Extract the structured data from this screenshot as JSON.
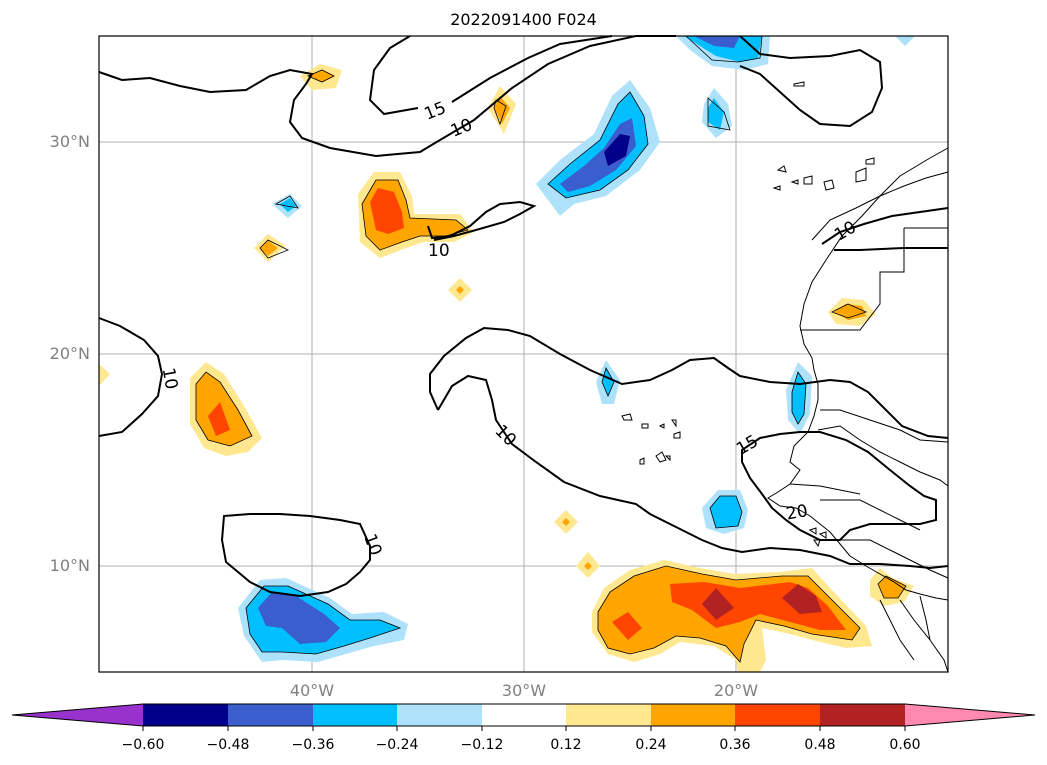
{
  "title": "2022091400 F024",
  "lat_labels": [
    {
      "text": "30°N",
      "lat": 30
    },
    {
      "text": "20°N",
      "lat": 20
    },
    {
      "text": "10°N",
      "lat": 10
    }
  ],
  "lon_labels": [
    {
      "text": "40°W",
      "lon": -40
    },
    {
      "text": "30°W",
      "lon": -30
    },
    {
      "text": "20°W",
      "lon": -20
    }
  ],
  "contour_labels": [
    "15",
    "10",
    "10",
    "10",
    "10",
    "10",
    "15",
    "10",
    "20"
  ],
  "colorbar": {
    "colors": [
      "#9932cc",
      "#00008b",
      "#3a5fcd",
      "#00bfff",
      "#ade2fa",
      "#ffffff",
      "#ffe88f",
      "#ffa500",
      "#ff4500",
      "#b22222",
      "#ff89b0"
    ],
    "ticks": [
      "−0.60",
      "−0.48",
      "−0.36",
      "−0.24",
      "−0.12",
      "0.12",
      "0.24",
      "0.36",
      "0.48",
      "0.60"
    ]
  },
  "colors": {
    "grid": "#b0b0b0",
    "contour": "#000000",
    "coast": "#000000"
  }
}
